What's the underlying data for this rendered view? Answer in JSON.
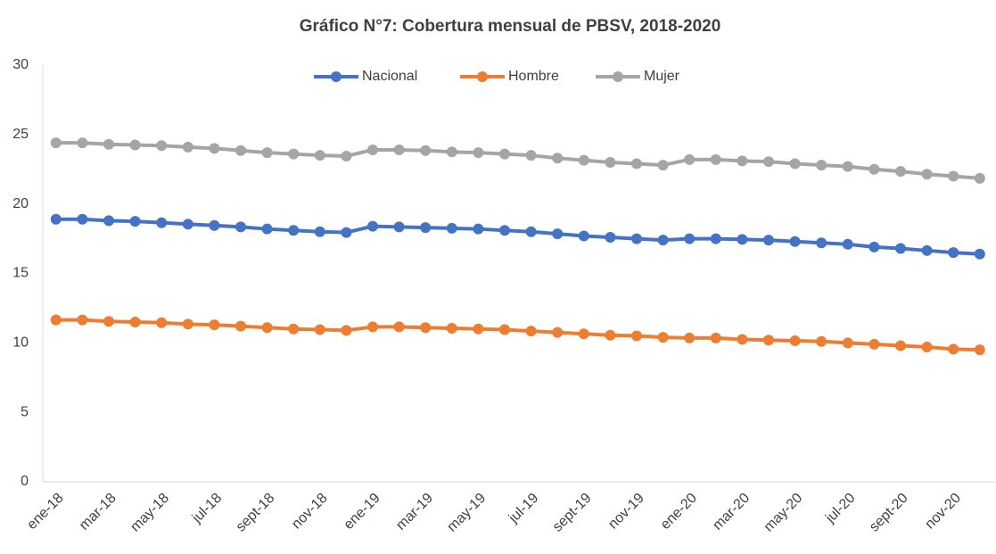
{
  "chart_data": {
    "type": "line",
    "title": "Gráfico N°7: Cobertura mensual de PBSV, 2018-2020",
    "categories": [
      "ene-18",
      null,
      "mar-18",
      null,
      "may-18",
      null,
      "jul-18",
      null,
      "sept-18",
      null,
      "nov-18",
      null,
      "ene-19",
      null,
      "mar-19",
      null,
      "may-19",
      null,
      "jul-19",
      null,
      "sept-19",
      null,
      "nov-19",
      null,
      "ene-20",
      null,
      "mar-20",
      null,
      "may-20",
      null,
      "jul-20",
      null,
      "sept-20",
      null,
      "nov-20",
      null
    ],
    "series": [
      {
        "name": "Nacional",
        "color": "#4472c4",
        "values": [
          18.9,
          18.9,
          18.8,
          18.75,
          18.65,
          18.55,
          18.45,
          18.35,
          18.2,
          18.1,
          18.0,
          17.95,
          18.4,
          18.35,
          18.3,
          18.25,
          18.2,
          18.1,
          18.0,
          17.85,
          17.7,
          17.6,
          17.5,
          17.4,
          17.5,
          17.5,
          17.45,
          17.4,
          17.3,
          17.2,
          17.1,
          16.9,
          16.8,
          16.65,
          16.5,
          16.4
        ]
      },
      {
        "name": "Hombre",
        "color": "#ed7d31",
        "values": [
          11.65,
          11.65,
          11.55,
          11.5,
          11.45,
          11.35,
          11.3,
          11.2,
          11.1,
          11.0,
          10.95,
          10.9,
          11.15,
          11.15,
          11.1,
          11.05,
          11.0,
          10.95,
          10.85,
          10.75,
          10.65,
          10.55,
          10.5,
          10.4,
          10.35,
          10.35,
          10.25,
          10.2,
          10.15,
          10.1,
          10.0,
          9.9,
          9.8,
          9.7,
          9.55,
          9.5
        ]
      },
      {
        "name": "Mujer",
        "color": "#a5a5a5",
        "values": [
          24.4,
          24.4,
          24.3,
          24.25,
          24.2,
          24.1,
          24.0,
          23.85,
          23.7,
          23.6,
          23.5,
          23.45,
          23.9,
          23.9,
          23.85,
          23.75,
          23.7,
          23.6,
          23.5,
          23.3,
          23.15,
          23.0,
          22.9,
          22.8,
          23.2,
          23.2,
          23.1,
          23.05,
          22.9,
          22.8,
          22.7,
          22.5,
          22.35,
          22.15,
          22.0,
          21.85
        ]
      }
    ],
    "ylim": [
      0,
      30
    ],
    "yticks": [
      0,
      5,
      10,
      15,
      20,
      25,
      30
    ],
    "grid": false,
    "legend": "top"
  }
}
